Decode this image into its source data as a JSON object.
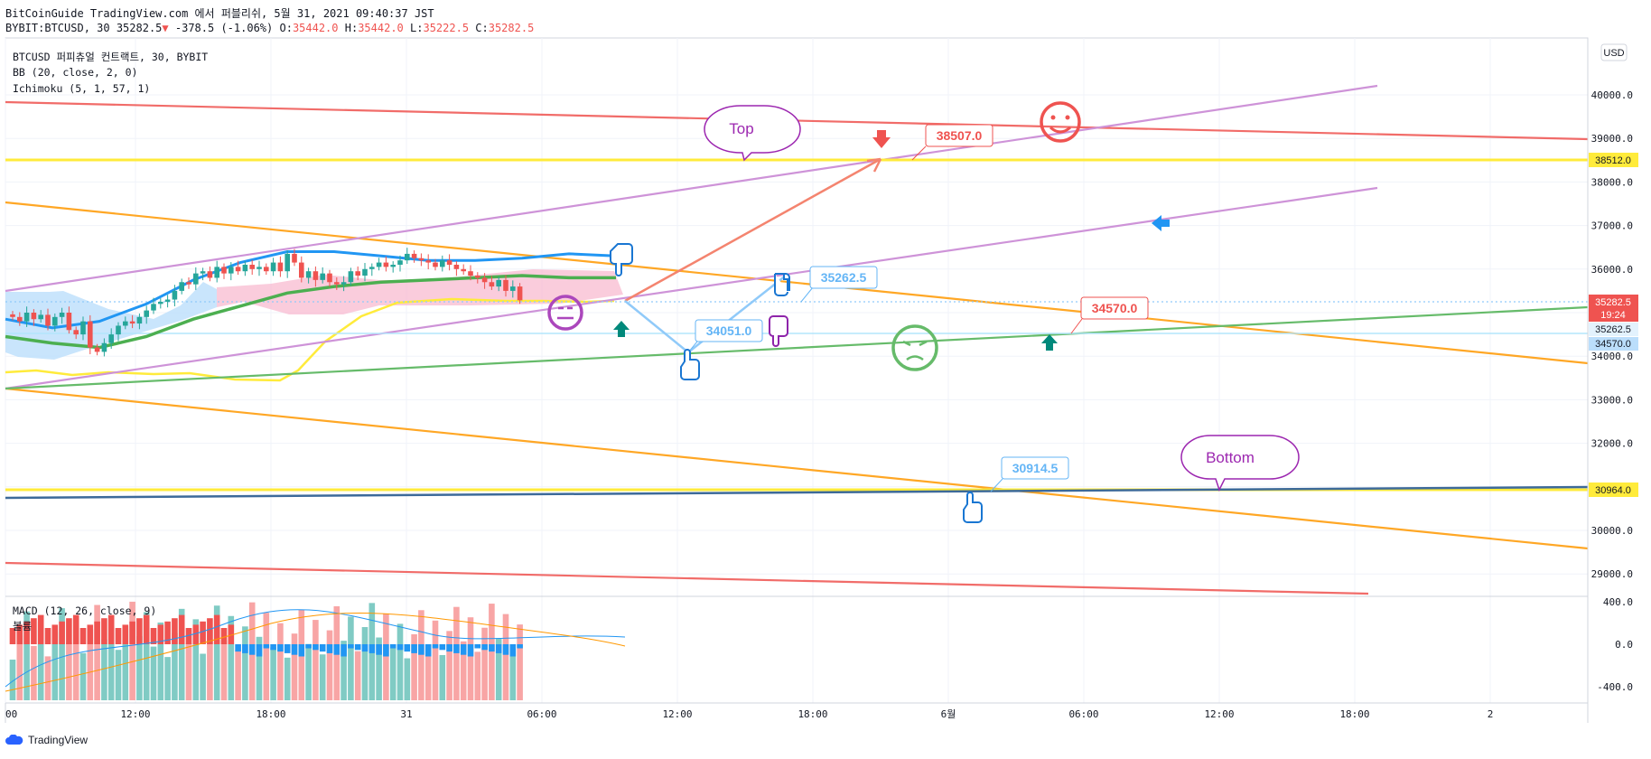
{
  "header": {
    "line1": "BitCoinGuide TradingView.com 에서 퍼블리쉬, 5월 31, 2021 09:40:37 JST",
    "symbol": "BYBIT:BTCUSD, 30",
    "last": "35282.5",
    "change_arrow": "▼",
    "change": "-378.5 (-1.06%)",
    "o_label": "O:",
    "o": "35442.0",
    "h_label": "H:",
    "h": "35442.0",
    "l_label": "L:",
    "l": "35222.5",
    "c_label": "C:",
    "c": "35282.5"
  },
  "legend": {
    "title": "BTCUSD 퍼피츄얼 컨트랙트, 30, BYBIT",
    "bb": "BB (20, close, 2, 0)",
    "ichimoku": "Ichimoku (5, 1, 57, 1)",
    "macd": "MACD (12, 26, close, 9)",
    "macd_sub": "볼륨"
  },
  "currency_button": "USD",
  "price_labels": {
    "current": "35282.5",
    "countdown": "19:24",
    "line_38512": "38512.0",
    "line_30964": "30964.0",
    "line_35262": "35262.5",
    "line_34570": "34570.0"
  },
  "annotations": {
    "top_bubble": "Top",
    "bottom_bubble": "Bottom",
    "label_38507": "38507.0",
    "label_35262": "35262.5",
    "label_34051": "34051.0",
    "label_34570": "34570.0",
    "label_30914": "30914.5"
  },
  "footer": {
    "brand": "TradingView"
  },
  "colors": {
    "up": "#26a69a",
    "down": "#ef5350",
    "bb_upper": "#2196f3",
    "bb_basis": "#4caf50",
    "ichimoku": "#ffeb3b",
    "trend_orange": "#ff9800",
    "trend_red": "#ef5350",
    "trend_purple": "#ce93d8",
    "trend_green": "#66bb6a",
    "hline_yellow": "#ffeb3b",
    "hline_blue": "#3d6a99"
  },
  "chart_data": {
    "type": "candlestick",
    "y_axis": {
      "ticks": [
        29000,
        30000,
        31000,
        32000,
        33000,
        34000,
        35000,
        36000,
        37000,
        38000,
        39000,
        40000
      ],
      "range": [
        28600,
        41200
      ]
    },
    "x_axis": {
      "ticks": [
        "00",
        "12:00",
        "18:00",
        "31",
        "06:00",
        "12:00",
        "18:00",
        "6월",
        "06:00",
        "12:00",
        "18:00",
        "2"
      ]
    },
    "closes": [
      34900,
      34800,
      35000,
      34850,
      34950,
      34700,
      34900,
      35000,
      34600,
      34500,
      34800,
      34200,
      34100,
      34300,
      34500,
      34700,
      34800,
      34750,
      34900,
      35050,
      35200,
      35250,
      35300,
      35500,
      35700,
      35650,
      35900,
      35950,
      35800,
      36050,
      35900,
      36050,
      35950,
      36100,
      36000,
      36050,
      35950,
      36150,
      35950,
      36350,
      36150,
      35800,
      35950,
      35750,
      35900,
      35700,
      35650,
      35700,
      35950,
      35850,
      36000,
      36050,
      36150,
      36050,
      36100,
      36200,
      36350,
      36250,
      36200,
      36150,
      36050,
      36200,
      36100,
      36000,
      35950,
      35850,
      35800,
      35700,
      35600,
      35750,
      35500,
      35600,
      35282.5
    ],
    "bb_upper": [
      34850,
      34650,
      34800,
      35200,
      35750,
      36150,
      36400,
      36400,
      36300,
      36200,
      36200,
      36250,
      36350,
      36300
    ],
    "bb_basis": [
      34450,
      34300,
      34200,
      34450,
      34850,
      35150,
      35450,
      35600,
      35700,
      35750,
      35800,
      35850,
      35800,
      35800
    ],
    "macd": {
      "ylim": [
        -500,
        500
      ],
      "ticks": [
        400,
        0,
        -400
      ]
    },
    "horizontal_levels": [
      38512.0,
      30964.0,
      35262.5,
      34570.0
    ]
  }
}
